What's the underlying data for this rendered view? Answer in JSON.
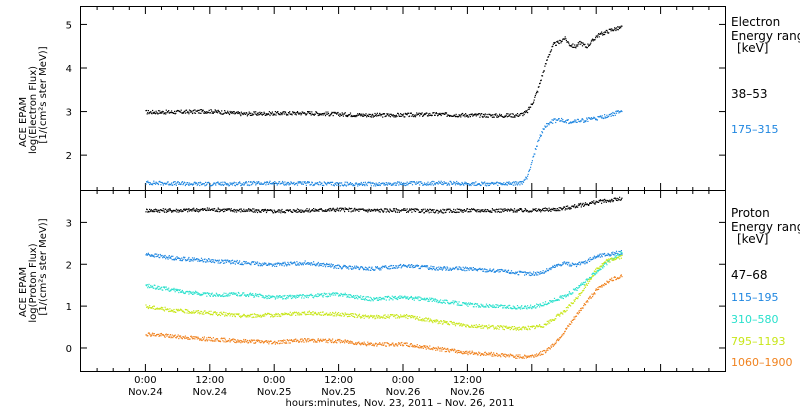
{
  "chart_data": [
    {
      "type": "scatter",
      "panel": "electron",
      "ylabel": [
        "ACE EPAM",
        "log(Electron Flux)",
        "[1/(cm²s ster MeV)]"
      ],
      "ylim": [
        1.2,
        5.4
      ],
      "yticks": [
        2,
        3,
        4,
        5
      ],
      "legend_title": [
        "Electron",
        "Energy ranges",
        "[keV]"
      ],
      "series": [
        {
          "name": "38–53",
          "color": "#000000",
          "x": [
            0,
            6,
            12,
            18,
            24,
            30,
            36,
            42,
            48,
            54,
            60,
            66,
            69,
            70,
            71,
            72,
            73,
            74,
            75,
            76,
            77,
            78,
            79,
            80,
            81,
            82,
            83,
            84,
            85,
            86,
            87,
            88,
            88.8
          ],
          "y": [
            3.0,
            3.0,
            3.02,
            2.96,
            2.97,
            2.98,
            2.95,
            2.93,
            2.93,
            2.95,
            2.93,
            2.92,
            2.93,
            2.95,
            3.0,
            3.2,
            3.5,
            3.9,
            4.3,
            4.55,
            4.6,
            4.7,
            4.55,
            4.5,
            4.6,
            4.5,
            4.6,
            4.75,
            4.8,
            4.85,
            4.9,
            4.92,
            4.95
          ]
        },
        {
          "name": "175–315",
          "color": "#1e86e0",
          "x": [
            0,
            6,
            12,
            18,
            24,
            30,
            36,
            42,
            48,
            54,
            60,
            66,
            69,
            70,
            71,
            72,
            73,
            74,
            75,
            76,
            77,
            78,
            79,
            80,
            81,
            82,
            83,
            84,
            85,
            86,
            87,
            88,
            88.8
          ],
          "y": [
            1.38,
            1.36,
            1.35,
            1.36,
            1.37,
            1.36,
            1.35,
            1.35,
            1.36,
            1.37,
            1.36,
            1.35,
            1.36,
            1.37,
            1.5,
            1.9,
            2.3,
            2.6,
            2.75,
            2.8,
            2.82,
            2.8,
            2.78,
            2.8,
            2.8,
            2.82,
            2.85,
            2.85,
            2.88,
            2.92,
            2.95,
            3.0,
            3.05
          ]
        }
      ]
    },
    {
      "type": "scatter",
      "panel": "proton",
      "ylabel": [
        "ACE EPAM",
        "log(Proton Flux)",
        "[1/(cm²s ster MeV)]"
      ],
      "ylim": [
        -0.55,
        3.75
      ],
      "yticks": [
        0,
        1,
        2,
        3
      ],
      "legend_title": [
        "Proton",
        "Energy ranges",
        "[keV]"
      ],
      "series": [
        {
          "name": "47–68",
          "color": "#000000",
          "x": [
            0,
            6,
            12,
            18,
            24,
            30,
            36,
            42,
            48,
            54,
            60,
            66,
            72,
            76,
            78,
            80,
            82,
            84,
            86,
            88.8
          ],
          "y": [
            3.3,
            3.3,
            3.32,
            3.3,
            3.28,
            3.3,
            3.32,
            3.3,
            3.3,
            3.28,
            3.3,
            3.3,
            3.3,
            3.32,
            3.35,
            3.4,
            3.45,
            3.5,
            3.53,
            3.58
          ]
        },
        {
          "name": "115–195",
          "color": "#1e86e0",
          "x": [
            0,
            6,
            12,
            18,
            24,
            30,
            36,
            42,
            48,
            54,
            60,
            66,
            70,
            72,
            74,
            76,
            78,
            80,
            82,
            84,
            86,
            88.8
          ],
          "y": [
            2.25,
            2.15,
            2.1,
            2.05,
            2.0,
            2.05,
            1.95,
            1.9,
            1.98,
            1.92,
            1.9,
            1.85,
            1.8,
            1.78,
            1.82,
            1.95,
            2.05,
            1.98,
            2.08,
            2.2,
            2.25,
            2.3
          ]
        },
        {
          "name": "310–580",
          "color": "#29e0cc",
          "x": [
            0,
            6,
            12,
            18,
            24,
            30,
            36,
            42,
            48,
            54,
            60,
            66,
            70,
            72,
            74,
            76,
            78,
            80,
            82,
            84,
            86,
            88.8
          ],
          "y": [
            1.5,
            1.38,
            1.28,
            1.3,
            1.22,
            1.25,
            1.3,
            1.18,
            1.22,
            1.15,
            1.05,
            1.0,
            0.98,
            1.0,
            1.05,
            1.15,
            1.25,
            1.4,
            1.6,
            1.85,
            2.05,
            2.3
          ]
        },
        {
          "name": "795–1193",
          "color": "#c8e619",
          "x": [
            0,
            6,
            12,
            18,
            24,
            30,
            36,
            42,
            48,
            54,
            60,
            66,
            70,
            72,
            74,
            76,
            78,
            80,
            82,
            84,
            86,
            88.8
          ],
          "y": [
            1.0,
            0.9,
            0.85,
            0.78,
            0.8,
            0.85,
            0.82,
            0.75,
            0.78,
            0.65,
            0.55,
            0.5,
            0.48,
            0.5,
            0.55,
            0.7,
            0.9,
            1.15,
            1.5,
            1.9,
            2.1,
            2.2
          ]
        },
        {
          "name": "1060–1900",
          "color": "#f0821e",
          "x": [
            0,
            6,
            12,
            18,
            24,
            30,
            36,
            42,
            48,
            54,
            60,
            66,
            70,
            72,
            74,
            76,
            78,
            80,
            82,
            84,
            86,
            88.8
          ],
          "y": [
            0.35,
            0.28,
            0.22,
            0.18,
            0.15,
            0.2,
            0.18,
            0.1,
            0.1,
            0.0,
            -0.1,
            -0.15,
            -0.2,
            -0.18,
            -0.1,
            0.1,
            0.4,
            0.75,
            1.1,
            1.4,
            1.6,
            1.75
          ]
        }
      ]
    }
  ],
  "x_axis": {
    "xlim": [
      -12,
      108
    ],
    "ticks": [
      {
        "value": 0,
        "time": "0:00",
        "date": "Nov.24"
      },
      {
        "value": 12,
        "time": "12:00",
        "date": "Nov.24"
      },
      {
        "value": 24,
        "time": "0:00",
        "date": "Nov.25"
      },
      {
        "value": 36,
        "time": "12:00",
        "date": "Nov.25"
      },
      {
        "value": 48,
        "time": "0:00",
        "date": "Nov.26"
      },
      {
        "value": 60,
        "time": "12:00",
        "date": "Nov.26"
      }
    ],
    "title": "hours:minutes, Nov. 23, 2011 – Nov. 26, 2011"
  }
}
